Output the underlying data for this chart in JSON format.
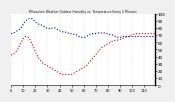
{
  "title": "Milwaukee Weather Outdoor Humidity vs. Temperature Every 5 Minutes",
  "bg_color": "#f0f0f0",
  "plot_bg": "#ffffff",
  "grid_color": "#aaaaaa",
  "blue_color": "#0000dd",
  "red_color": "#cc0000",
  "blue_y": [
    72,
    72,
    73,
    74,
    75,
    76,
    77,
    78,
    80,
    82,
    85,
    88,
    90,
    91,
    92,
    93,
    93,
    93,
    92,
    90,
    88,
    87,
    86,
    85,
    84,
    84,
    83,
    82,
    81,
    80,
    79,
    79,
    79,
    79,
    80,
    80,
    80,
    79,
    78,
    77,
    76,
    75,
    75,
    74,
    74,
    74,
    73,
    73,
    72,
    72,
    72,
    71,
    71,
    70,
    70,
    69,
    68,
    67,
    67,
    67,
    67,
    67,
    68,
    69,
    70,
    71,
    71,
    72,
    72,
    72,
    72,
    72,
    73,
    73,
    73,
    73,
    73,
    73,
    72,
    72,
    72,
    71,
    71,
    70,
    70,
    69,
    68,
    67,
    67,
    67,
    67,
    67,
    68,
    68,
    68,
    68,
    68,
    68,
    68,
    68,
    68,
    68,
    68,
    68,
    68,
    68,
    68,
    68,
    68,
    68,
    68,
    68,
    68,
    68,
    68,
    68,
    68,
    68,
    68,
    68
  ],
  "red_y": [
    42,
    43,
    44,
    45,
    47,
    49,
    52,
    56,
    59,
    62,
    65,
    67,
    68,
    68,
    67,
    65,
    62,
    59,
    55,
    51,
    47,
    43,
    40,
    37,
    35,
    33,
    31,
    30,
    29,
    28,
    27,
    26,
    25,
    24,
    23,
    22,
    21,
    20,
    19,
    18,
    17,
    16,
    16,
    15,
    15,
    15,
    15,
    15,
    15,
    15,
    15,
    16,
    17,
    18,
    19,
    20,
    21,
    22,
    23,
    24,
    25,
    26,
    27,
    29,
    31,
    33,
    35,
    37,
    39,
    41,
    43,
    45,
    47,
    49,
    51,
    53,
    54,
    55,
    56,
    57,
    58,
    59,
    60,
    61,
    62,
    62,
    63,
    63,
    63,
    63,
    64,
    64,
    65,
    66,
    67,
    68,
    68,
    68,
    69,
    70,
    70,
    71,
    71,
    72,
    72,
    72,
    72,
    72,
    72,
    72,
    72,
    72,
    72,
    72,
    72,
    72,
    72,
    72,
    72,
    72
  ],
  "n_points": 120,
  "ylim": [
    0,
    100
  ],
  "ytick_interval": 10,
  "xtick_interval": 10
}
